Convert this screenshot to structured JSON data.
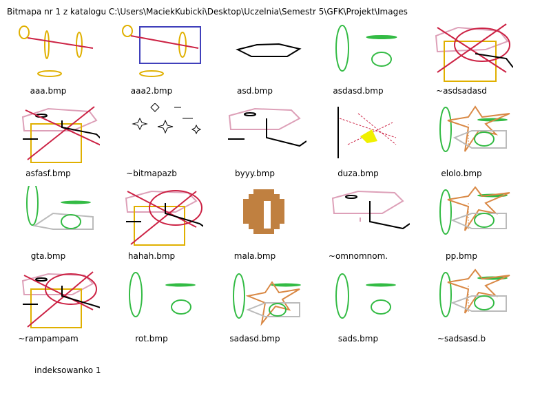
{
  "header": {
    "title": "Bitmapa nr 1 z katalogu C:\\Users\\MaciekKubicki\\Desktop\\Uczelnia\\Semestr 5\\GFK\\Projekt\\Images"
  },
  "thumbnails": [
    {
      "label": "aaa.bmp"
    },
    {
      "label": "aaa2.bmp"
    },
    {
      "label": "asd.bmp"
    },
    {
      "label": "asdasd.bmp"
    },
    {
      "label": "~asdsadasd"
    },
    {
      "label": "asfasf.bmp"
    },
    {
      "label": "~bitmapazb"
    },
    {
      "label": "byyy.bmp"
    },
    {
      "label": "duza.bmp"
    },
    {
      "label": "elolo.bmp"
    },
    {
      "label": "gta.bmp"
    },
    {
      "label": "hahah.bmp"
    },
    {
      "label": "mala.bmp"
    },
    {
      "label": "~omnomnom."
    },
    {
      "label": "pp.bmp"
    },
    {
      "label": "~rampampam"
    },
    {
      "label": "rot.bmp"
    },
    {
      "label": "sadasd.bmp"
    },
    {
      "label": "sads.bmp"
    },
    {
      "label": "~sadsasd.b"
    }
  ],
  "footer": {
    "status": "indeksowanko 1"
  }
}
